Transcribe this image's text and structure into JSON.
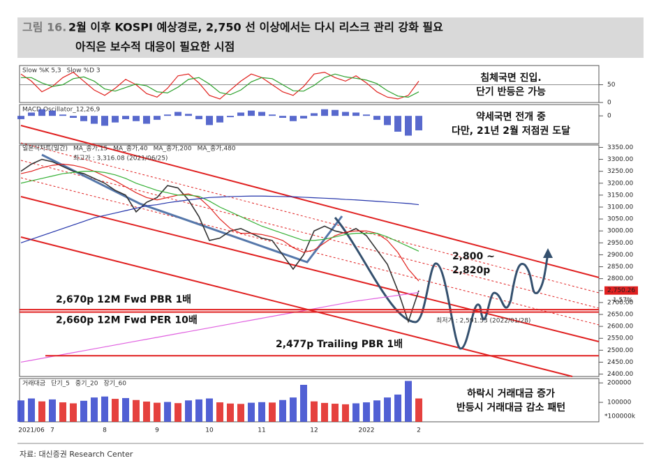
{
  "header": {
    "label": "그림 16.",
    "title": "2월 이후 KOSPI 예상경로, 2,750 선 이상에서는 다시 리스크 관리 강화 필요",
    "subtitle": "아직은 보수적 대응이 필요한 시점"
  },
  "source": "자료: 대신증권 Research Center",
  "chart_data": [
    {
      "type": "line",
      "ylim": [
        0,
        100
      ],
      "yticks": [
        0,
        50
      ],
      "grid": true,
      "notes": [
        "침체국면 진입.",
        "단기 반등은 가능"
      ],
      "series": [
        {
          "name": "Slow %K 5,3",
          "color": "#e0201c",
          "values": [
            80,
            60,
            30,
            45,
            70,
            85,
            60,
            35,
            20,
            40,
            65,
            50,
            25,
            15,
            40,
            75,
            80,
            55,
            20,
            10,
            35,
            60,
            80,
            70,
            50,
            30,
            20,
            45,
            80,
            85,
            70,
            60,
            75,
            55,
            30,
            15,
            10,
            20,
            60
          ]
        },
        {
          "name": "Slow %D 3",
          "color": "#2aa02a",
          "values": [
            70,
            70,
            55,
            45,
            50,
            67,
            72,
            60,
            38,
            32,
            42,
            52,
            47,
            30,
            27,
            43,
            65,
            70,
            52,
            28,
            22,
            35,
            58,
            70,
            67,
            50,
            33,
            32,
            48,
            70,
            80,
            72,
            68,
            63,
            53,
            33,
            18,
            15,
            30
          ]
        }
      ]
    },
    {
      "type": "bar",
      "ylim": [
        -40,
        15
      ],
      "yticks": [
        0
      ],
      "notes": [
        "약세국면 전개 중",
        "다만, 21년 2월 저점권 도달"
      ],
      "series": [
        {
          "name": "MACD Oscillator_12,26,9",
          "color": "#3b4fc4",
          "values": [
            -5,
            5,
            10,
            8,
            2,
            -3,
            -8,
            -12,
            -15,
            -10,
            -5,
            -8,
            -12,
            -6,
            2,
            6,
            3,
            -5,
            -14,
            -10,
            -2,
            5,
            8,
            6,
            2,
            -3,
            -8,
            -4,
            4,
            10,
            9,
            6,
            5,
            2,
            -6,
            -14,
            -24,
            -30,
            -22
          ]
        }
      ]
    },
    {
      "type": "line",
      "ylim": [
        2390,
        3360
      ],
      "yticks": [
        {
          "value": 2400,
          "label": "2400.00"
        },
        {
          "value": 2450,
          "label": "2450.00"
        },
        {
          "value": 2500,
          "label": "2500.00"
        },
        {
          "value": 2550,
          "label": "2550.00"
        },
        {
          "value": 2600,
          "label": "2600.00"
        },
        {
          "value": 2650,
          "label": "2650.00"
        },
        {
          "value": 2700,
          "label": "2700.00"
        },
        {
          "value": 2750,
          "label": "2750.00"
        },
        {
          "value": 2800,
          "label": "2800.00"
        },
        {
          "value": 2850,
          "label": "2850.00"
        },
        {
          "value": 2900,
          "label": "2900.00"
        },
        {
          "value": 2950,
          "label": "2950.00"
        },
        {
          "value": 3000,
          "label": "3000.00"
        },
        {
          "value": 3050,
          "label": "3050.00"
        },
        {
          "value": 3100,
          "label": "3100.00"
        },
        {
          "value": 3150,
          "label": "3150.00"
        },
        {
          "value": 3200,
          "label": "3200.00"
        },
        {
          "value": 3250,
          "label": "3250.00"
        },
        {
          "value": 3300,
          "label": "3300.00"
        },
        {
          "value": 3350,
          "label": "3350.00"
        }
      ],
      "high_label": "최고가 : 3,316.08 (2021/06/25)",
      "low_label": "최저가 : 2,591.53 (2022/01/28)",
      "last_value": {
        "value": 2750.26,
        "label": "2,750.26"
      },
      "change_label": "1.57%",
      "levels": [
        {
          "value": 2670,
          "label": "2,670p 12M Fwd PBR 1배"
        },
        {
          "value": 2660,
          "label": "2,660p 12M Fwd PER 10배"
        },
        {
          "value": 2477,
          "label": "2,477p Trailing PBR 1배"
        }
      ],
      "target_labels": [
        "2,800 ~",
        "2,820p"
      ],
      "series": [
        {
          "name": "일본식차트(일간)",
          "color": "#333333",
          "values": [
            3250,
            3280,
            3300,
            3290,
            3270,
            3250,
            3240,
            3220,
            3200,
            3170,
            3150,
            3080,
            3120,
            3140,
            3190,
            3180,
            3130,
            3060,
            2960,
            2970,
            3000,
            3010,
            2990,
            2970,
            2960,
            2900,
            2840,
            2900,
            3000,
            3020,
            3000,
            2990,
            3010,
            2980,
            2920,
            2860,
            2750,
            2620,
            2750
          ]
        },
        {
          "name": "MA_종가,15",
          "color": "#e0201c",
          "values": [
            3240,
            3250,
            3265,
            3275,
            3280,
            3275,
            3265,
            3250,
            3230,
            3210,
            3185,
            3160,
            3140,
            3130,
            3140,
            3150,
            3155,
            3140,
            3100,
            3050,
            3010,
            2990,
            2990,
            2985,
            2975,
            2960,
            2930,
            2910,
            2920,
            2950,
            2980,
            2995,
            3000,
            3000,
            2990,
            2960,
            2910,
            2840,
            2790
          ]
        },
        {
          "name": "MA_종가,40",
          "color": "#35b035",
          "values": [
            3200,
            3210,
            3220,
            3230,
            3240,
            3245,
            3250,
            3250,
            3245,
            3235,
            3220,
            3200,
            3185,
            3170,
            3160,
            3150,
            3150,
            3145,
            3125,
            3100,
            3080,
            3060,
            3040,
            3020,
            3005,
            2990,
            2975,
            2960,
            2960,
            2965,
            2975,
            2985,
            2990,
            2990,
            2990,
            2975,
            2955,
            2935,
            2915
          ]
        },
        {
          "name": "MA_종가,200",
          "color": "#2233aa",
          "values": [
            2950,
            2965,
            2980,
            2995,
            3010,
            3025,
            3040,
            3055,
            3065,
            3075,
            3085,
            3095,
            3105,
            3110,
            3118,
            3124,
            3130,
            3135,
            3140,
            3142,
            3144,
            3145,
            3146,
            3146,
            3145,
            3144,
            3143,
            3141,
            3139,
            3137,
            3135,
            3132,
            3130,
            3127,
            3124,
            3121,
            3118,
            3115,
            3110
          ]
        },
        {
          "name": "MA_종가,480",
          "color": "#e060e0",
          "values": [
            2450,
            2458,
            2466,
            2474,
            2482,
            2490,
            2498,
            2506,
            2514,
            2522,
            2530,
            2538,
            2546,
            2554,
            2562,
            2570,
            2578,
            2586,
            2594,
            2602,
            2610,
            2618,
            2626,
            2634,
            2642,
            2650,
            2658,
            2666,
            2674,
            2682,
            2690,
            2698,
            2706,
            2712,
            2718,
            2724,
            2730,
            2736,
            2742
          ]
        }
      ]
    },
    {
      "type": "bar",
      "ylim": [
        0,
        215000
      ],
      "yticks": [
        100000,
        200000
      ],
      "unit_label": "*100000k",
      "moving_average_labels": [
        "단기_5",
        "중기_20",
        "장기_60"
      ],
      "notes": [
        "하락시 거래대금 증가",
        "반등시 거래대금 감소 패턴"
      ],
      "categories": [
        null,
        "2021/06",
        null,
        "7",
        null,
        null,
        null,
        null,
        "8",
        null,
        null,
        null,
        null,
        "9",
        null,
        null,
        null,
        null,
        "10",
        null,
        null,
        null,
        null,
        "11",
        null,
        null,
        null,
        null,
        "12",
        null,
        null,
        null,
        null,
        "2022",
        null,
        null,
        null,
        null,
        "2"
      ],
      "series": [
        {
          "name": "거래대금",
          "color": "#3344cc",
          "values": [
            110000,
            120000,
            105000,
            115000,
            100000,
            95000,
            108000,
            125000,
            130000,
            118000,
            122000,
            112000,
            104000,
            98000,
            102000,
            96000,
            110000,
            115000,
            120000,
            100000,
            94000,
            92000,
            98000,
            101000,
            99000,
            112000,
            125000,
            190000,
            105000,
            97000,
            93000,
            90000,
            95000,
            100000,
            110000,
            125000,
            140000,
            210000,
            120000
          ]
        }
      ]
    }
  ]
}
